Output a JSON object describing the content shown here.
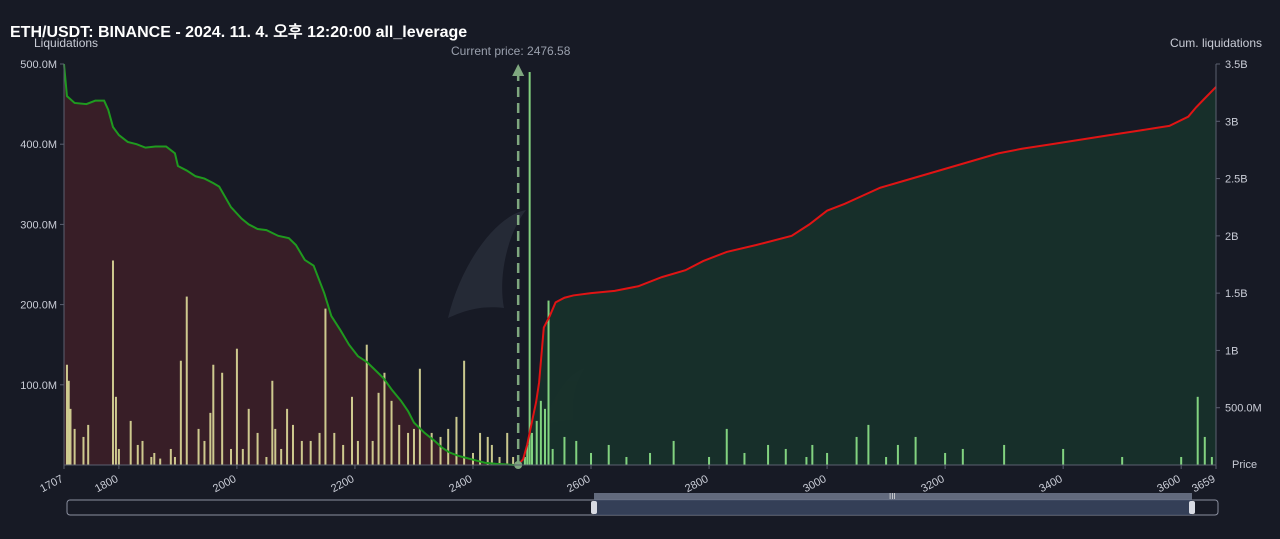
{
  "header": {
    "title": "ETH/USDT: BINANCE - 2024. 11. 4. 오후 12:20:00 all_leverage",
    "left_axis_label": "Liquidations",
    "right_axis_label": "Cum. liquidations",
    "current_price_label": "Current price: 2476.58",
    "x_axis_label": "Price"
  },
  "colors": {
    "background": "#171a25",
    "short_cum_line": "#1f9a1f",
    "long_cum_line": "#e01414",
    "left_fill": "#3a1f27",
    "right_fill": "#17302a",
    "bar_yellow": "#e9e7a1",
    "bar_green": "#8ee68a",
    "current_price_marker": "#7fa77f"
  },
  "chart_data": {
    "type": "bar",
    "title": "ETH/USDT: BINANCE - 2024. 11. 4. 오후 12:20:00 all_leverage",
    "xlabel": "Price",
    "ylabel": "Liquidations",
    "y2label": "Cum. liquidations",
    "current_price": 2476.58,
    "xlim": [
      1707,
      3659
    ],
    "ylim": [
      0,
      500000000
    ],
    "y2lim": [
      0,
      3500000000
    ],
    "x_ticks": [
      "1707",
      "1800",
      "2000",
      "2200",
      "2400",
      "2600",
      "2800",
      "3000",
      "3200",
      "3400",
      "3600",
      "3659"
    ],
    "y_ticks": [
      "500.0M",
      "400.0M",
      "300.0M",
      "200.0M",
      "100.0M"
    ],
    "y2_ticks": [
      "3.5B",
      "3B",
      "2.5B",
      "2B",
      "1.5B",
      "1B",
      "500.0M"
    ],
    "legend": "none",
    "grid": false,
    "series": [
      {
        "type": "bar",
        "values_x": [
          1712,
          1715,
          1718,
          1725,
          1740,
          1748,
          1790,
          1795,
          1800,
          1820,
          1832,
          1840,
          1855,
          1860,
          1870,
          1888,
          1895,
          1905,
          1915,
          1935,
          1945,
          1955,
          1960,
          1975,
          1990,
          2000,
          2010,
          2020,
          2035,
          2050,
          2060,
          2065,
          2075,
          2085,
          2095,
          2110,
          2125,
          2140,
          2150,
          2165,
          2180,
          2195,
          2205,
          2220,
          2230,
          2240,
          2250,
          2262,
          2275,
          2290,
          2300,
          2310,
          2330,
          2345,
          2358,
          2372,
          2385,
          2400,
          2412,
          2425,
          2432,
          2445,
          2458,
          2468
        ],
        "values_y": [
          125,
          105,
          70,
          45,
          35,
          50,
          255,
          85,
          20,
          55,
          25,
          30,
          10,
          15,
          8,
          20,
          10,
          130,
          210,
          45,
          30,
          65,
          125,
          115,
          20,
          145,
          20,
          70,
          40,
          10,
          105,
          45,
          20,
          70,
          50,
          30,
          30,
          40,
          195,
          40,
          25,
          85,
          30,
          150,
          30,
          90,
          115,
          80,
          50,
          40,
          45,
          120,
          40,
          35,
          45,
          60,
          130,
          15,
          40,
          35,
          25,
          10,
          40,
          10
        ]
      },
      {
        "type": "bar",
        "values_x": [
          2488,
          2492,
          2496,
          2500,
          2508,
          2515,
          2522,
          2528,
          2535,
          2555,
          2575,
          2600,
          2630,
          2660,
          2700,
          2740,
          2800,
          2830,
          2860,
          2900,
          2930,
          2965,
          2975,
          3000,
          3050,
          3070,
          3100,
          3120,
          3150,
          3200,
          3230,
          3300,
          3400,
          3500,
          3600,
          3628,
          3640,
          3652
        ],
        "values_y": [
          10,
          25,
          490,
          40,
          55,
          80,
          70,
          205,
          20,
          35,
          30,
          15,
          25,
          10,
          15,
          30,
          10,
          45,
          15,
          25,
          20,
          10,
          25,
          15,
          35,
          50,
          10,
          25,
          35,
          15,
          20,
          25,
          20,
          10,
          10,
          85,
          35,
          10
        ]
      },
      {
        "type": "line",
        "name": "",
        "values_x": [
          1707,
          1712,
          1725,
          1745,
          1760,
          1775,
          1782,
          1790,
          1800,
          1815,
          1830,
          1845,
          1862,
          1880,
          1895,
          1900,
          1915,
          1930,
          1945,
          1960,
          1970,
          1990,
          2008,
          2020,
          2035,
          2050,
          2070,
          2088,
          2100,
          2115,
          2130,
          2148,
          2160,
          2175,
          2190,
          2205,
          2220,
          2232,
          2248,
          2262,
          2278,
          2290,
          2300,
          2318,
          2335,
          2348,
          2360,
          2375,
          2390,
          2405,
          2420,
          2440,
          2455,
          2470,
          2476
        ],
        "values_y": [
          3.5,
          3.22,
          3.16,
          3.15,
          3.18,
          3.18,
          3.1,
          2.95,
          2.88,
          2.82,
          2.8,
          2.77,
          2.78,
          2.78,
          2.72,
          2.61,
          2.57,
          2.52,
          2.5,
          2.46,
          2.43,
          2.25,
          2.15,
          2.1,
          2.06,
          2.05,
          2.0,
          1.98,
          1.92,
          1.79,
          1.74,
          1.5,
          1.3,
          1.18,
          1.05,
          0.95,
          0.9,
          0.84,
          0.76,
          0.66,
          0.56,
          0.47,
          0.37,
          0.28,
          0.21,
          0.15,
          0.11,
          0.08,
          0.06,
          0.04,
          0.02,
          0.01,
          0.005,
          0.0,
          0.0
        ]
      },
      {
        "type": "line",
        "name": "",
        "values_x": [
          2476,
          2485,
          2492,
          2500,
          2507,
          2512,
          2520,
          2530,
          2540,
          2555,
          2570,
          2600,
          2640,
          2680,
          2720,
          2760,
          2790,
          2830,
          2880,
          2940,
          2970,
          3000,
          3030,
          3060,
          3090,
          3130,
          3170,
          3210,
          3250,
          3290,
          3330,
          3380,
          3430,
          3480,
          3530,
          3580,
          3612,
          3625,
          3640,
          3659
        ],
        "values_y": [
          0.0,
          0.05,
          0.18,
          0.38,
          0.55,
          0.72,
          1.2,
          1.3,
          1.42,
          1.46,
          1.48,
          1.5,
          1.52,
          1.56,
          1.64,
          1.7,
          1.78,
          1.86,
          1.92,
          2.0,
          2.1,
          2.22,
          2.28,
          2.35,
          2.42,
          2.48,
          2.54,
          2.6,
          2.66,
          2.72,
          2.76,
          2.8,
          2.84,
          2.88,
          2.92,
          2.96,
          3.04,
          3.12,
          3.2,
          3.3
        ]
      }
    ]
  }
}
